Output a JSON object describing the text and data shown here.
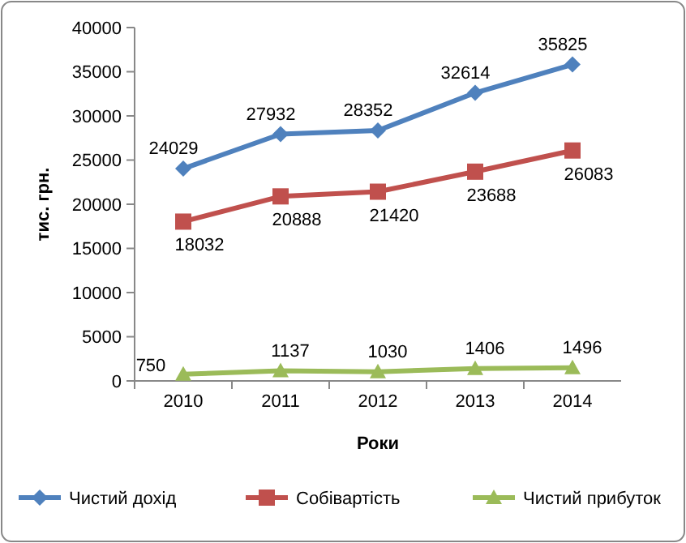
{
  "chart_data": {
    "type": "line",
    "xlabel": "Роки",
    "ylabel": "тис. грн.",
    "categories": [
      "2010",
      "2011",
      "2012",
      "2013",
      "2014"
    ],
    "series": [
      {
        "name": "Чистий дохід",
        "color": "#4f81bd",
        "marker": "diamond",
        "values": [
          24029,
          27932,
          28352,
          32614,
          35825
        ]
      },
      {
        "name": "Собівартість",
        "color": "#c0504d",
        "marker": "square",
        "values": [
          18032,
          20888,
          21420,
          23688,
          26083
        ]
      },
      {
        "name": "Чистий прибуток",
        "color": "#9bbb59",
        "marker": "triangle",
        "values": [
          750,
          1137,
          1030,
          1406,
          1496
        ]
      }
    ],
    "ylim": [
      0,
      40000
    ],
    "yticks": [
      0,
      5000,
      10000,
      15000,
      20000,
      25000,
      30000,
      35000,
      40000
    ],
    "data_labels": true,
    "legend": "bottom",
    "grid": false
  }
}
